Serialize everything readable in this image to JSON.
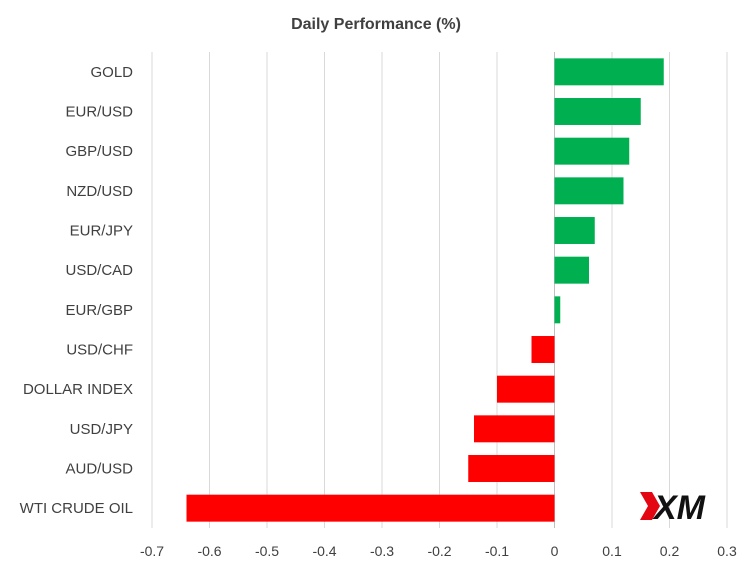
{
  "chart_data": {
    "type": "bar",
    "orientation": "horizontal",
    "title": "Daily Performance (%)",
    "xlabel": "",
    "ylabel": "",
    "categories": [
      "GOLD",
      "EUR/USD",
      "GBP/USD",
      "NZD/USD",
      "EUR/JPY",
      "USD/CAD",
      "EUR/GBP",
      "USD/CHF",
      "DOLLAR INDEX",
      "USD/JPY",
      "AUD/USD",
      "WTI CRUDE OIL"
    ],
    "values": [
      0.19,
      0.15,
      0.13,
      0.12,
      0.07,
      0.06,
      0.01,
      -0.04,
      -0.1,
      -0.14,
      -0.15,
      -0.64
    ],
    "xlim": [
      -0.7,
      0.3
    ],
    "xticks": [
      -0.7,
      -0.6,
      -0.5,
      -0.4,
      -0.3,
      -0.2,
      -0.1,
      0,
      0.1,
      0.2,
      0.3
    ],
    "xtick_labels": [
      "-0.7",
      "-0.6",
      "-0.5",
      "-0.4",
      "-0.3",
      "-0.2",
      "-0.1",
      "0",
      "0.1",
      "0.2",
      "0.3"
    ],
    "grid": "vertical",
    "legend": "none",
    "colors": {
      "positive": "#00b050",
      "negative": "#ff0000"
    }
  },
  "logo": {
    "text": "XM",
    "accent_color": "#e30613"
  }
}
